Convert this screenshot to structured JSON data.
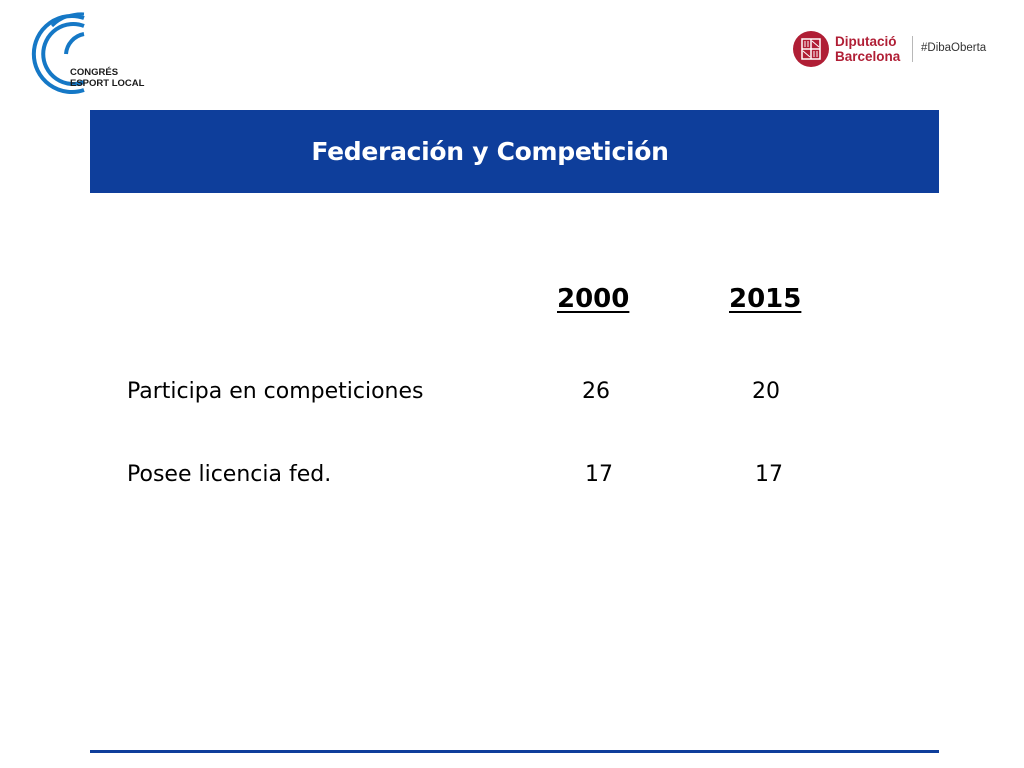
{
  "header": {
    "congress_logo": {
      "line1": "CONGRÉS",
      "line2": "ESPORT LOCAL",
      "icon": "concentric-c-arcs-icon"
    },
    "diputacio_logo": {
      "line1": "Diputació",
      "line2": "Barcelona",
      "hashtag": "#DibaOberta",
      "icon": "coat-of-arms-seal-icon"
    }
  },
  "slide": {
    "title": "Federación y Competición",
    "columns": [
      "2000",
      "2015"
    ],
    "rows": [
      {
        "label": "Participa  en competiciones",
        "values": [
          "26",
          "20"
        ]
      },
      {
        "label": "Posee licencia fed.",
        "values": [
          "17",
          "17"
        ]
      }
    ]
  },
  "colors": {
    "title_bar": "#0e3e9b",
    "congress_blue": "#1578c6",
    "diputacio_red": "#b01e35"
  }
}
